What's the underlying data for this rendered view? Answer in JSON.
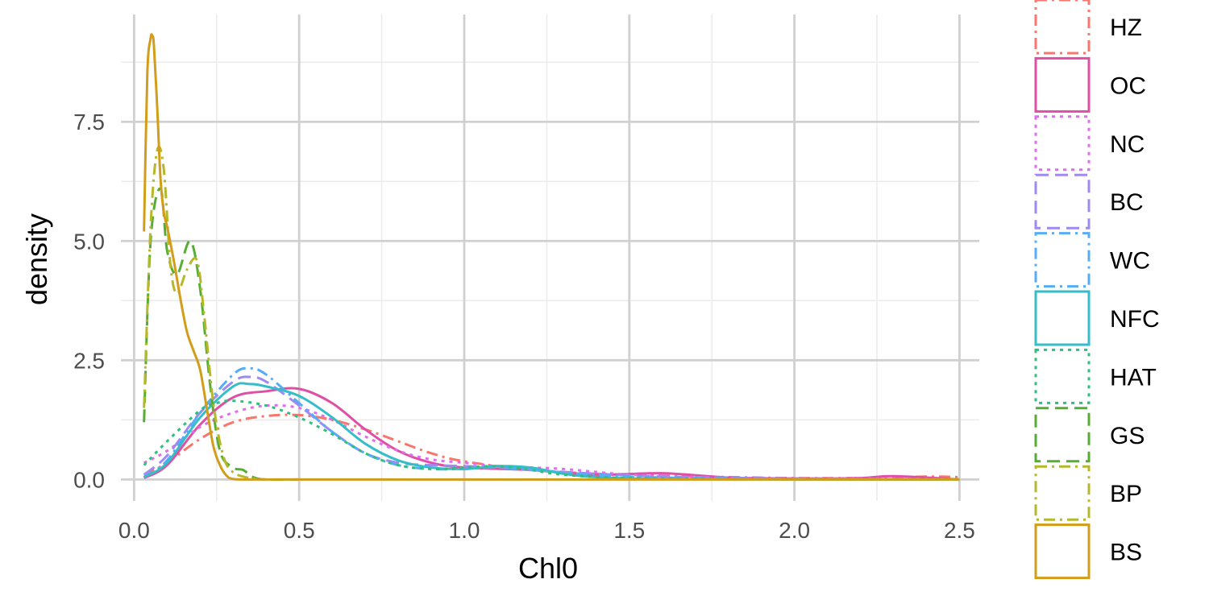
{
  "chart_data": {
    "type": "line",
    "title": "",
    "xlabel": "Chl0",
    "ylabel": "density",
    "xlim": [
      -0.04,
      2.56
    ],
    "ylim": [
      -0.45,
      9.75
    ],
    "x_ticks": [
      0.0,
      0.5,
      1.0,
      1.5,
      2.0,
      2.5
    ],
    "x_tick_labels": [
      "0.0",
      "0.5",
      "1.0",
      "1.5",
      "2.0",
      "2.5"
    ],
    "y_ticks": [
      0.0,
      2.5,
      5.0,
      7.5
    ],
    "y_tick_labels": [
      "0.0",
      "2.5",
      "5.0",
      "7.5"
    ],
    "grid": true,
    "legend_position": "right",
    "series": [
      {
        "name": "HZ",
        "color": "#F8766D",
        "dash": "14 6 3 6",
        "x": [
          0.03,
          0.1,
          0.2,
          0.3,
          0.4,
          0.5,
          0.6,
          0.7,
          0.8,
          0.9,
          1.0,
          1.2,
          1.4,
          1.6,
          1.8,
          2.0,
          2.2,
          2.4,
          2.5
        ],
        "y": [
          0.1,
          0.35,
          0.85,
          1.2,
          1.33,
          1.35,
          1.25,
          1.05,
          0.8,
          0.55,
          0.38,
          0.2,
          0.12,
          0.08,
          0.05,
          0.03,
          0.03,
          0.06,
          0.05
        ]
      },
      {
        "name": "OC",
        "color": "#DE4FA6",
        "dash": "",
        "x": [
          0.03,
          0.1,
          0.2,
          0.3,
          0.4,
          0.5,
          0.6,
          0.7,
          0.8,
          0.9,
          1.0,
          1.2,
          1.4,
          1.6,
          1.8,
          2.0,
          2.2,
          2.3,
          2.5
        ],
        "y": [
          0.03,
          0.3,
          1.15,
          1.72,
          1.85,
          1.9,
          1.6,
          1.05,
          0.6,
          0.35,
          0.25,
          0.2,
          0.1,
          0.13,
          0.04,
          0.02,
          0.03,
          0.07,
          0.0
        ]
      },
      {
        "name": "NC",
        "color": "#E16BF1",
        "dash": "4 6",
        "x": [
          0.03,
          0.1,
          0.2,
          0.3,
          0.4,
          0.5,
          0.6,
          0.7,
          0.8,
          0.9,
          1.0,
          1.1,
          1.2,
          1.3,
          1.5,
          1.7,
          2.0,
          2.3,
          2.5
        ],
        "y": [
          0.35,
          0.6,
          1.1,
          1.4,
          1.55,
          1.5,
          1.25,
          0.9,
          0.6,
          0.42,
          0.35,
          0.28,
          0.25,
          0.22,
          0.1,
          0.05,
          0.02,
          0.02,
          0.0
        ]
      },
      {
        "name": "BC",
        "color": "#9F8AF1",
        "dash": "16 8",
        "x": [
          0.03,
          0.1,
          0.2,
          0.3,
          0.35,
          0.4,
          0.5,
          0.6,
          0.7,
          0.8,
          0.9,
          1.0,
          1.1,
          1.2,
          1.4,
          1.6,
          2.0,
          2.5
        ],
        "y": [
          0.1,
          0.5,
          1.4,
          2.05,
          2.15,
          2.05,
          1.55,
          1.0,
          0.55,
          0.35,
          0.3,
          0.28,
          0.25,
          0.2,
          0.12,
          0.06,
          0.02,
          0.0
        ]
      },
      {
        "name": "WC",
        "color": "#56ACF6",
        "dash": "14 6 3 6",
        "x": [
          0.03,
          0.1,
          0.2,
          0.3,
          0.35,
          0.4,
          0.5,
          0.6,
          0.7,
          0.8,
          0.9,
          1.0,
          1.1,
          1.2,
          1.4,
          1.6,
          2.0,
          2.5
        ],
        "y": [
          0.05,
          0.4,
          1.4,
          2.2,
          2.33,
          2.2,
          1.6,
          1.0,
          0.55,
          0.3,
          0.22,
          0.22,
          0.25,
          0.2,
          0.1,
          0.04,
          0.01,
          0.0
        ]
      },
      {
        "name": "NFC",
        "color": "#35BEC9",
        "dash": "",
        "x": [
          0.03,
          0.1,
          0.2,
          0.3,
          0.35,
          0.4,
          0.5,
          0.6,
          0.7,
          0.8,
          0.9,
          1.0,
          1.1,
          1.2,
          1.3,
          1.4,
          1.6,
          2.0,
          2.5
        ],
        "y": [
          0.05,
          0.35,
          1.3,
          1.95,
          2.0,
          1.95,
          1.75,
          1.3,
          0.75,
          0.4,
          0.25,
          0.22,
          0.28,
          0.25,
          0.12,
          0.05,
          0.01,
          0.0,
          0.0
        ]
      },
      {
        "name": "HAT",
        "color": "#2CC07C",
        "dash": "4 6",
        "x": [
          0.03,
          0.1,
          0.2,
          0.25,
          0.3,
          0.4,
          0.5,
          0.6,
          0.7,
          0.8,
          0.9,
          1.0,
          1.1,
          1.2,
          1.3,
          1.5,
          2.0,
          2.5
        ],
        "y": [
          0.3,
          0.8,
          1.45,
          1.6,
          1.65,
          1.55,
          1.3,
          0.95,
          0.55,
          0.3,
          0.22,
          0.25,
          0.28,
          0.2,
          0.1,
          0.03,
          0.0,
          0.0
        ]
      },
      {
        "name": "GS",
        "color": "#55AE33",
        "dash": "16 8",
        "x": [
          0.03,
          0.05,
          0.08,
          0.1,
          0.13,
          0.17,
          0.2,
          0.23,
          0.26,
          0.3,
          0.33,
          0.36,
          0.4,
          0.5
        ],
        "y": [
          1.2,
          5.0,
          6.1,
          4.8,
          4.3,
          5.0,
          4.0,
          2.0,
          0.6,
          0.25,
          0.2,
          0.05,
          0.0,
          0.0
        ]
      },
      {
        "name": "BP",
        "color": "#B6B82B",
        "dash": "14 6 3 6",
        "x": [
          0.03,
          0.05,
          0.07,
          0.09,
          0.11,
          0.13,
          0.16,
          0.19,
          0.21,
          0.24,
          0.27,
          0.3,
          0.35,
          0.4
        ],
        "y": [
          1.5,
          5.3,
          6.9,
          6.5,
          4.5,
          3.9,
          4.4,
          4.6,
          3.6,
          1.6,
          0.5,
          0.15,
          0.03,
          0.0
        ]
      },
      {
        "name": "BS",
        "color": "#D29D1A",
        "dash": "",
        "x": [
          0.03,
          0.04,
          0.05,
          0.055,
          0.06,
          0.07,
          0.08,
          0.09,
          0.1,
          0.12,
          0.14,
          0.16,
          0.18,
          0.2,
          0.22,
          0.24,
          0.26,
          0.28,
          0.3,
          0.35,
          0.5,
          1.0,
          2.5
        ],
        "y": [
          5.2,
          8.5,
          9.25,
          9.3,
          9.1,
          7.8,
          6.3,
          5.6,
          5.3,
          4.6,
          3.8,
          3.1,
          2.7,
          2.3,
          1.5,
          0.7,
          0.3,
          0.08,
          0.01,
          0.0,
          0.0,
          0.0,
          0.0
        ]
      }
    ]
  }
}
